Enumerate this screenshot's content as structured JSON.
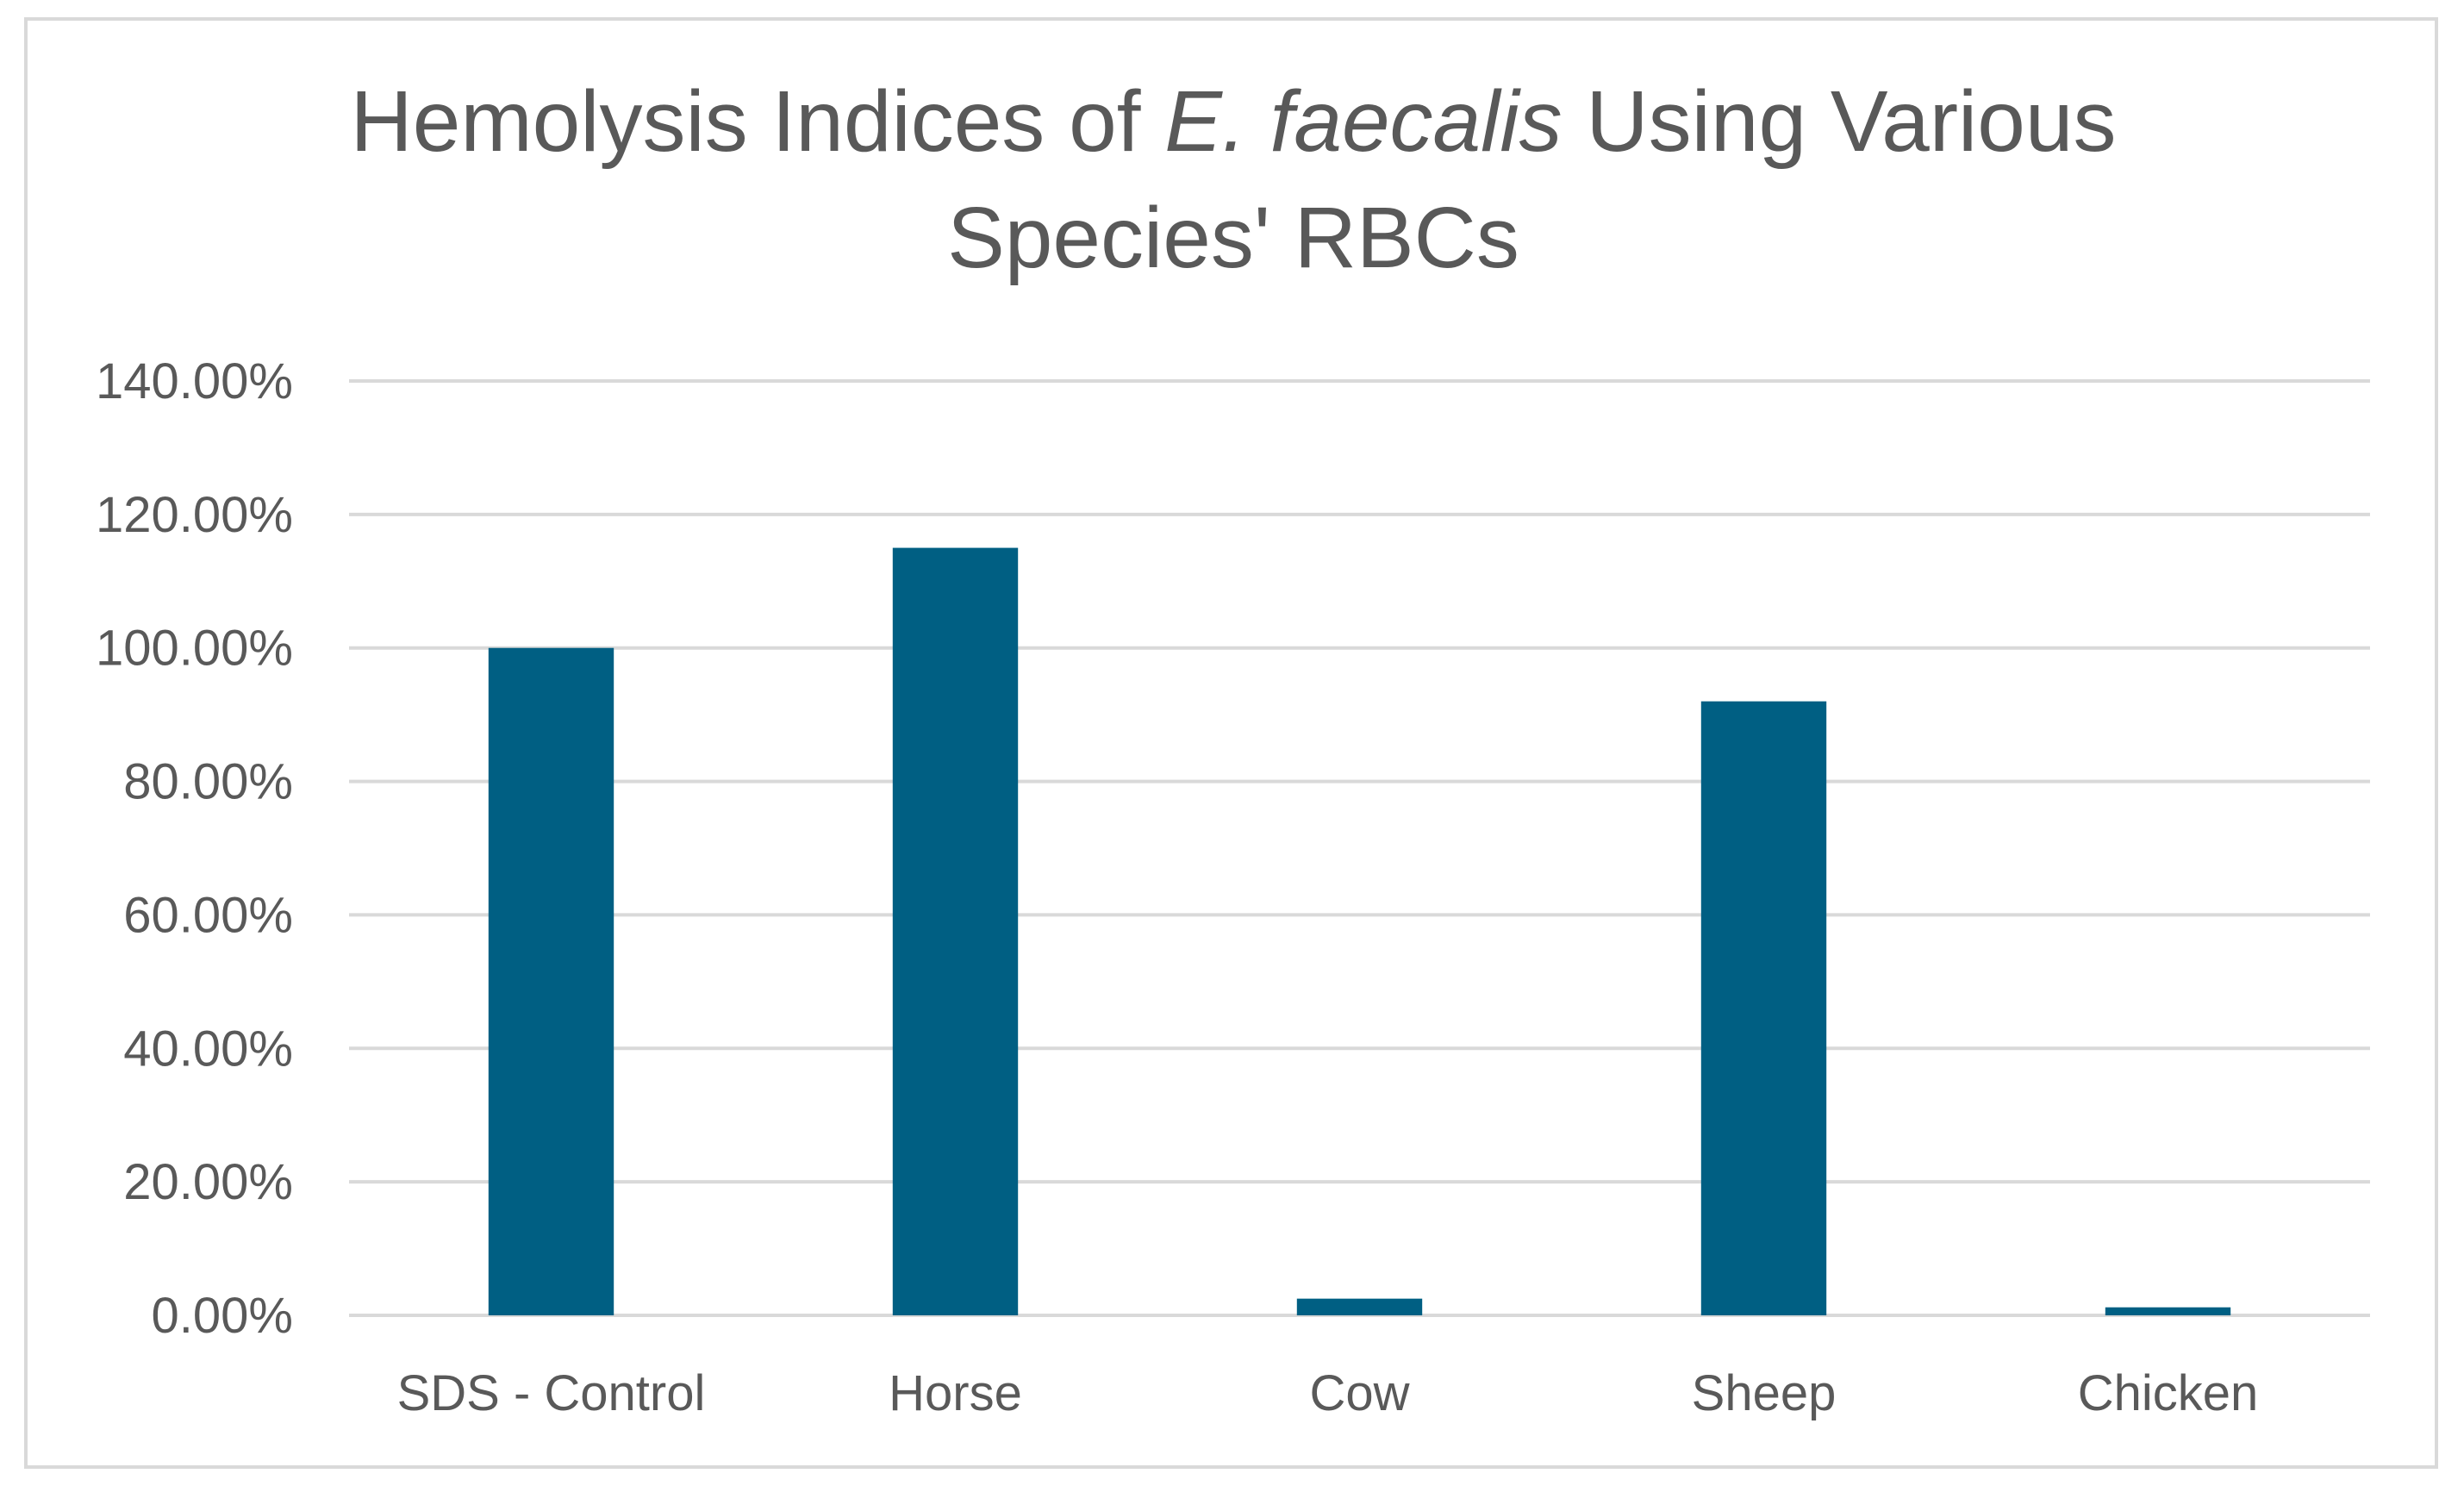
{
  "chart_data": {
    "type": "bar",
    "title": {
      "before": "Hemolysis Indices of ",
      "italic": "E. faecalis",
      "after": " Using Various",
      "line2": "Species' RBCs"
    },
    "xlabel": "",
    "ylabel": "",
    "categories": [
      "SDS - Control",
      "Horse",
      "Cow",
      "Sheep",
      "Chicken"
    ],
    "values": [
      1.0,
      1.15,
      0.025,
      0.92,
      0.012
    ],
    "ylim": [
      0,
      1.4
    ],
    "yticks": [
      0,
      0.2,
      0.4,
      0.6,
      0.8,
      1.0,
      1.2,
      1.4
    ],
    "ytick_labels": [
      "0.00%",
      "20.00%",
      "40.00%",
      "60.00%",
      "80.00%",
      "100.00%",
      "120.00%",
      "140.00%"
    ],
    "bar_color": "#005f83",
    "grid": true,
    "legend": "none"
  }
}
